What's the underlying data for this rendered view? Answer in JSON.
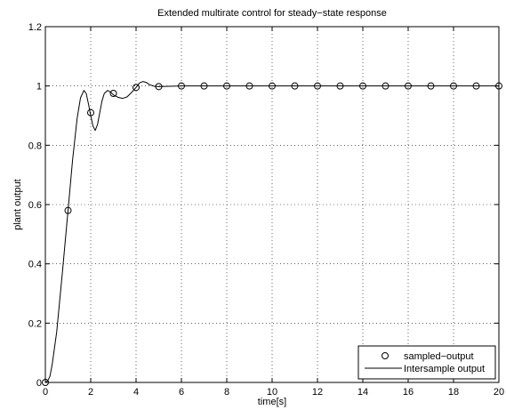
{
  "chart_data": {
    "type": "line",
    "title": "Extended multirate control for steady−state response",
    "xlabel": "time[s]",
    "ylabel": "plant output",
    "xlim": [
      0,
      20
    ],
    "ylim": [
      0,
      1.2
    ],
    "xticks": [
      0,
      2,
      4,
      6,
      8,
      10,
      12,
      14,
      16,
      18,
      20
    ],
    "yticks": [
      0,
      0.2,
      0.4,
      0.6,
      0.8,
      1,
      1.2
    ],
    "xtick_labels": [
      "0",
      "2",
      "4",
      "6",
      "8",
      "10",
      "12",
      "14",
      "16",
      "18",
      "20"
    ],
    "ytick_labels": [
      "0",
      "0.2",
      "0.4",
      "0.6",
      "0.8",
      "1",
      "1.2"
    ],
    "grid": true,
    "legend_position": "bottom-right",
    "series": [
      {
        "name": "sampled−output",
        "style": "markers",
        "marker": "circle",
        "color": "#000000",
        "x": [
          0,
          1,
          2,
          3,
          4,
          5,
          6,
          7,
          8,
          9,
          10,
          11,
          12,
          13,
          14,
          15,
          16,
          17,
          18,
          19,
          20
        ],
        "y": [
          0,
          0.58,
          0.91,
          0.975,
          0.995,
          0.998,
          1,
          1,
          1,
          1,
          1,
          1,
          1,
          1,
          1,
          1,
          1,
          1,
          1,
          1,
          1
        ]
      },
      {
        "name": "Intersample output",
        "style": "line",
        "color": "#000000",
        "x": [
          0,
          0.1,
          0.2,
          0.3,
          0.5,
          0.75,
          1.0,
          1.2,
          1.4,
          1.55,
          1.7,
          1.8,
          1.9,
          2.0,
          2.1,
          2.2,
          2.3,
          2.4,
          2.5,
          2.6,
          2.75,
          2.9,
          3.0,
          3.2,
          3.4,
          3.6,
          3.8,
          4.0,
          4.15,
          4.3,
          4.45,
          4.6,
          4.8,
          5.0,
          5.5,
          6,
          7,
          8,
          9,
          10,
          11,
          12,
          13,
          14,
          15,
          16,
          17,
          18,
          19,
          20
        ],
        "y": [
          0,
          0.005,
          0.02,
          0.06,
          0.17,
          0.37,
          0.58,
          0.75,
          0.89,
          0.96,
          0.985,
          0.975,
          0.94,
          0.9,
          0.865,
          0.85,
          0.87,
          0.91,
          0.95,
          0.975,
          0.985,
          0.978,
          0.97,
          0.962,
          0.958,
          0.963,
          0.978,
          0.995,
          1.01,
          1.015,
          1.012,
          1.004,
          0.999,
          0.998,
          0.999,
          1,
          1,
          1,
          1,
          1,
          1,
          1,
          1,
          1,
          1,
          1,
          1,
          1,
          1,
          1
        ]
      }
    ]
  }
}
